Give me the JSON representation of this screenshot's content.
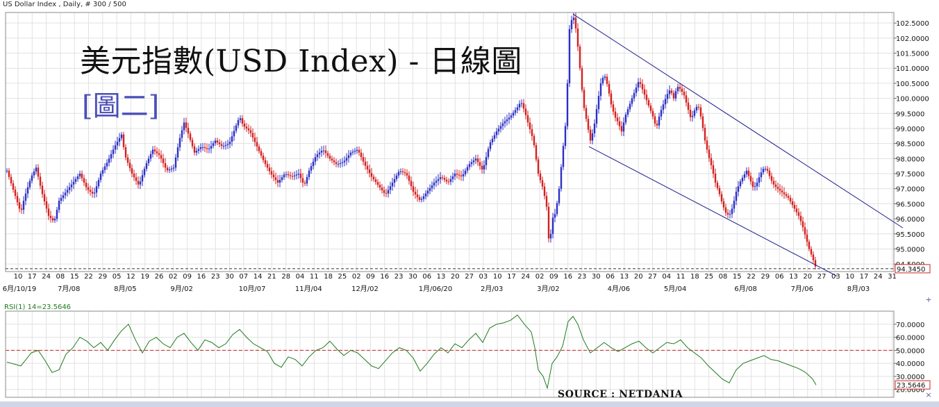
{
  "header": {
    "instrument_info": "US Dollar Index , Daily, # 300 / 500"
  },
  "overlay": {
    "title": "美元指數(USD Index) - 日線圖",
    "subtitle": "[圖二]",
    "source": "SOURCE : NETDANIA"
  },
  "controls": {
    "expand_label": "+",
    "collapse_label": "×"
  },
  "colors": {
    "up": "#2b2fc4",
    "down": "#d41f1f",
    "channel": "#1a1a8c",
    "rsi": "#1d7a1d",
    "rsi_mid": "#cc2222",
    "grid": "#e1e1e1"
  },
  "icons": [
    "expand-icon",
    "collapse-icon"
  ],
  "chart_data": [
    {
      "type": "candlestick",
      "grid": true,
      "ylim": [
        94.25,
        102.85
      ],
      "y_ticks": [
        "102.5000",
        "102.0000",
        "101.5000",
        "101.0000",
        "100.5000",
        "100.0000",
        "99.5000",
        "99.0000",
        "98.5000",
        "98.0000",
        "97.5000",
        "97.0000",
        "96.5000",
        "96.0000",
        "95.5000",
        "95.0000",
        "94.5000"
      ],
      "day_ticks": [
        "10",
        "17",
        "24",
        "08",
        "15",
        "22",
        "29",
        "05",
        "12",
        "19",
        "26",
        "02",
        "09",
        "16",
        "23",
        "30",
        "07",
        "14",
        "21",
        "28",
        "04",
        "11",
        "18",
        "25",
        "02",
        "09",
        "16",
        "23",
        "30",
        "06",
        "13",
        "20",
        "27",
        "03",
        "10",
        "17",
        "24",
        "02",
        "09",
        "16",
        "23",
        "30",
        "06",
        "13",
        "20",
        "27",
        "04",
        "11",
        "18",
        "25",
        "08",
        "15",
        "22",
        "29",
        "06",
        "13",
        "20",
        "27",
        "03",
        "10",
        "17",
        "24",
        "31"
      ],
      "month_ticks": [
        "6月/10/19",
        "7月/08",
        "8月/05",
        "9月/02",
        "10月/07",
        "11月/04",
        "12月/02",
        "1月/06/20",
        "2月/03",
        "3月/02",
        "4月/06",
        "5月/04",
        "6月/08",
        "7月/06",
        "8月/03"
      ],
      "last_price": "94.3450",
      "last_value": 94.345,
      "price_path": [
        [
          0,
          97.6
        ],
        [
          10,
          96.9
        ],
        [
          20,
          96.2
        ],
        [
          25,
          96.7
        ],
        [
          35,
          97.4
        ],
        [
          42,
          97.7
        ],
        [
          50,
          96.9
        ],
        [
          60,
          96.1
        ],
        [
          68,
          95.9
        ],
        [
          75,
          96.6
        ],
        [
          85,
          96.9
        ],
        [
          95,
          97.2
        ],
        [
          105,
          97.5
        ],
        [
          115,
          97.0
        ],
        [
          125,
          96.8
        ],
        [
          135,
          97.5
        ],
        [
          145,
          97.9
        ],
        [
          155,
          98.4
        ],
        [
          165,
          98.8
        ],
        [
          170,
          98.1
        ],
        [
          180,
          97.5
        ],
        [
          190,
          97.1
        ],
        [
          200,
          97.8
        ],
        [
          210,
          98.3
        ],
        [
          220,
          98.1
        ],
        [
          230,
          97.6
        ],
        [
          240,
          97.7
        ],
        [
          248,
          98.6
        ],
        [
          255,
          99.2
        ],
        [
          260,
          98.9
        ],
        [
          270,
          98.2
        ],
        [
          280,
          98.4
        ],
        [
          290,
          98.3
        ],
        [
          300,
          98.6
        ],
        [
          310,
          98.4
        ],
        [
          320,
          98.5
        ],
        [
          330,
          99.1
        ],
        [
          335,
          99.4
        ],
        [
          340,
          99.1
        ],
        [
          350,
          98.9
        ],
        [
          360,
          98.4
        ],
        [
          370,
          97.9
        ],
        [
          380,
          97.5
        ],
        [
          390,
          97.2
        ],
        [
          400,
          97.5
        ],
        [
          410,
          97.4
        ],
        [
          420,
          97.5
        ],
        [
          428,
          97.1
        ],
        [
          435,
          97.6
        ],
        [
          445,
          98.1
        ],
        [
          455,
          98.3
        ],
        [
          465,
          98.0
        ],
        [
          475,
          97.8
        ],
        [
          485,
          97.9
        ],
        [
          495,
          98.2
        ],
        [
          505,
          98.3
        ],
        [
          515,
          97.8
        ],
        [
          525,
          97.4
        ],
        [
          535,
          97.1
        ],
        [
          545,
          96.8
        ],
        [
          555,
          97.2
        ],
        [
          565,
          97.6
        ],
        [
          575,
          97.5
        ],
        [
          585,
          96.9
        ],
        [
          595,
          96.6
        ],
        [
          605,
          96.9
        ],
        [
          615,
          97.2
        ],
        [
          625,
          97.4
        ],
        [
          635,
          97.2
        ],
        [
          645,
          97.5
        ],
        [
          655,
          97.4
        ],
        [
          665,
          97.8
        ],
        [
          675,
          98.0
        ],
        [
          685,
          97.6
        ],
        [
          695,
          98.5
        ],
        [
          705,
          98.9
        ],
        [
          715,
          99.2
        ],
        [
          725,
          99.4
        ],
        [
          735,
          99.7
        ],
        [
          740,
          99.9
        ],
        [
          745,
          99.6
        ],
        [
          750,
          99.2
        ],
        [
          758,
          98.6
        ],
        [
          765,
          97.5
        ],
        [
          772,
          97.0
        ],
        [
          777,
          96.4
        ],
        [
          781,
          95.0
        ],
        [
          785,
          96.0
        ],
        [
          790,
          96.2
        ],
        [
          795,
          97.0
        ],
        [
          800,
          98.2
        ],
        [
          805,
          99.3
        ],
        [
          810,
          102.3
        ],
        [
          815,
          102.8
        ],
        [
          820,
          102.2
        ],
        [
          825,
          101.0
        ],
        [
          830,
          99.8
        ],
        [
          835,
          99.2
        ],
        [
          840,
          98.6
        ],
        [
          845,
          99.0
        ],
        [
          850,
          99.8
        ],
        [
          855,
          100.5
        ],
        [
          860,
          100.8
        ],
        [
          865,
          100.4
        ],
        [
          870,
          99.8
        ],
        [
          875,
          99.4
        ],
        [
          880,
          99.2
        ],
        [
          885,
          98.9
        ],
        [
          890,
          99.4
        ],
        [
          895,
          99.7
        ],
        [
          900,
          100.0
        ],
        [
          905,
          100.3
        ],
        [
          910,
          100.6
        ],
        [
          915,
          100.3
        ],
        [
          920,
          100.0
        ],
        [
          925,
          99.7
        ],
        [
          930,
          99.4
        ],
        [
          935,
          99.0
        ],
        [
          940,
          99.5
        ],
        [
          945,
          99.8
        ],
        [
          950,
          100.1
        ],
        [
          955,
          100.3
        ],
        [
          960,
          100.0
        ],
        [
          965,
          100.4
        ],
        [
          970,
          100.3
        ],
        [
          975,
          100.1
        ],
        [
          980,
          99.7
        ],
        [
          985,
          99.3
        ],
        [
          990,
          99.6
        ],
        [
          995,
          99.8
        ],
        [
          1000,
          99.3
        ],
        [
          1005,
          98.6
        ],
        [
          1010,
          98.1
        ],
        [
          1015,
          97.7
        ],
        [
          1020,
          97.2
        ],
        [
          1025,
          96.9
        ],
        [
          1030,
          96.5
        ],
        [
          1035,
          96.2
        ],
        [
          1040,
          96.1
        ],
        [
          1045,
          96.4
        ],
        [
          1050,
          96.9
        ],
        [
          1055,
          97.2
        ],
        [
          1060,
          97.4
        ],
        [
          1065,
          97.6
        ],
        [
          1070,
          97.3
        ],
        [
          1075,
          97.0
        ],
        [
          1080,
          97.2
        ],
        [
          1085,
          97.5
        ],
        [
          1090,
          97.7
        ],
        [
          1095,
          97.6
        ],
        [
          1100,
          97.3
        ],
        [
          1105,
          97.1
        ],
        [
          1110,
          97.0
        ],
        [
          1115,
          96.9
        ],
        [
          1120,
          96.8
        ],
        [
          1125,
          96.7
        ],
        [
          1130,
          96.5
        ],
        [
          1135,
          96.3
        ],
        [
          1140,
          96.1
        ],
        [
          1145,
          95.8
        ],
        [
          1150,
          95.4
        ],
        [
          1155,
          95.0
        ],
        [
          1160,
          94.7
        ],
        [
          1165,
          94.35
        ]
      ],
      "channel_upper": [
        [
          815,
          102.8
        ],
        [
          1290,
          95.7
        ]
      ],
      "channel_lower": [
        [
          838,
          98.4
        ],
        [
          1195,
          94.1
        ]
      ]
    },
    {
      "type": "line",
      "series": [
        {
          "name": "RSI(1) 14=23.5646"
        }
      ],
      "ylim": [
        14,
        80
      ],
      "y_ticks": [
        "70.0000",
        "60.0000",
        "50.0000",
        "40.0000",
        "30.0000",
        "20.0000"
      ],
      "reference_line": 50,
      "last_value": "23.5646",
      "values": [
        [
          0,
          41
        ],
        [
          20,
          38
        ],
        [
          35,
          48
        ],
        [
          45,
          50
        ],
        [
          55,
          42
        ],
        [
          65,
          33
        ],
        [
          75,
          35
        ],
        [
          85,
          47
        ],
        [
          95,
          52
        ],
        [
          105,
          60
        ],
        [
          115,
          57
        ],
        [
          125,
          52
        ],
        [
          135,
          56
        ],
        [
          145,
          50
        ],
        [
          155,
          58
        ],
        [
          165,
          65
        ],
        [
          175,
          70
        ],
        [
          185,
          58
        ],
        [
          195,
          48
        ],
        [
          205,
          57
        ],
        [
          215,
          60
        ],
        [
          225,
          55
        ],
        [
          235,
          52
        ],
        [
          245,
          60
        ],
        [
          255,
          63
        ],
        [
          265,
          56
        ],
        [
          275,
          50
        ],
        [
          285,
          58
        ],
        [
          295,
          56
        ],
        [
          305,
          52
        ],
        [
          315,
          55
        ],
        [
          325,
          62
        ],
        [
          335,
          66
        ],
        [
          345,
          60
        ],
        [
          355,
          55
        ],
        [
          365,
          52
        ],
        [
          375,
          49
        ],
        [
          385,
          40
        ],
        [
          395,
          37
        ],
        [
          405,
          45
        ],
        [
          415,
          43
        ],
        [
          425,
          38
        ],
        [
          435,
          45
        ],
        [
          445,
          50
        ],
        [
          455,
          52
        ],
        [
          465,
          57
        ],
        [
          475,
          51
        ],
        [
          485,
          46
        ],
        [
          495,
          50
        ],
        [
          505,
          48
        ],
        [
          515,
          43
        ],
        [
          525,
          38
        ],
        [
          535,
          36
        ],
        [
          545,
          42
        ],
        [
          555,
          48
        ],
        [
          565,
          52
        ],
        [
          575,
          50
        ],
        [
          585,
          44
        ],
        [
          595,
          34
        ],
        [
          605,
          40
        ],
        [
          615,
          47
        ],
        [
          625,
          52
        ],
        [
          635,
          48
        ],
        [
          645,
          55
        ],
        [
          655,
          52
        ],
        [
          665,
          58
        ],
        [
          675,
          63
        ],
        [
          685,
          56
        ],
        [
          695,
          67
        ],
        [
          705,
          70
        ],
        [
          715,
          71
        ],
        [
          725,
          73
        ],
        [
          735,
          77
        ],
        [
          745,
          70
        ],
        [
          755,
          64
        ],
        [
          760,
          52
        ],
        [
          765,
          35
        ],
        [
          772,
          30
        ],
        [
          778,
          21
        ],
        [
          785,
          40
        ],
        [
          792,
          45
        ],
        [
          800,
          53
        ],
        [
          808,
          72
        ],
        [
          815,
          76
        ],
        [
          822,
          70
        ],
        [
          830,
          58
        ],
        [
          840,
          48
        ],
        [
          850,
          52
        ],
        [
          860,
          56
        ],
        [
          870,
          52
        ],
        [
          880,
          49
        ],
        [
          890,
          52
        ],
        [
          900,
          55
        ],
        [
          910,
          57
        ],
        [
          920,
          52
        ],
        [
          930,
          48
        ],
        [
          940,
          52
        ],
        [
          950,
          56
        ],
        [
          960,
          55
        ],
        [
          970,
          58
        ],
        [
          980,
          52
        ],
        [
          990,
          48
        ],
        [
          1000,
          44
        ],
        [
          1010,
          38
        ],
        [
          1020,
          33
        ],
        [
          1030,
          28
        ],
        [
          1040,
          25
        ],
        [
          1050,
          35
        ],
        [
          1060,
          40
        ],
        [
          1070,
          42
        ],
        [
          1080,
          44
        ],
        [
          1090,
          46
        ],
        [
          1100,
          43
        ],
        [
          1110,
          42
        ],
        [
          1120,
          40
        ],
        [
          1130,
          38
        ],
        [
          1140,
          36
        ],
        [
          1150,
          33
        ],
        [
          1160,
          28
        ],
        [
          1165,
          23.5
        ]
      ]
    }
  ]
}
